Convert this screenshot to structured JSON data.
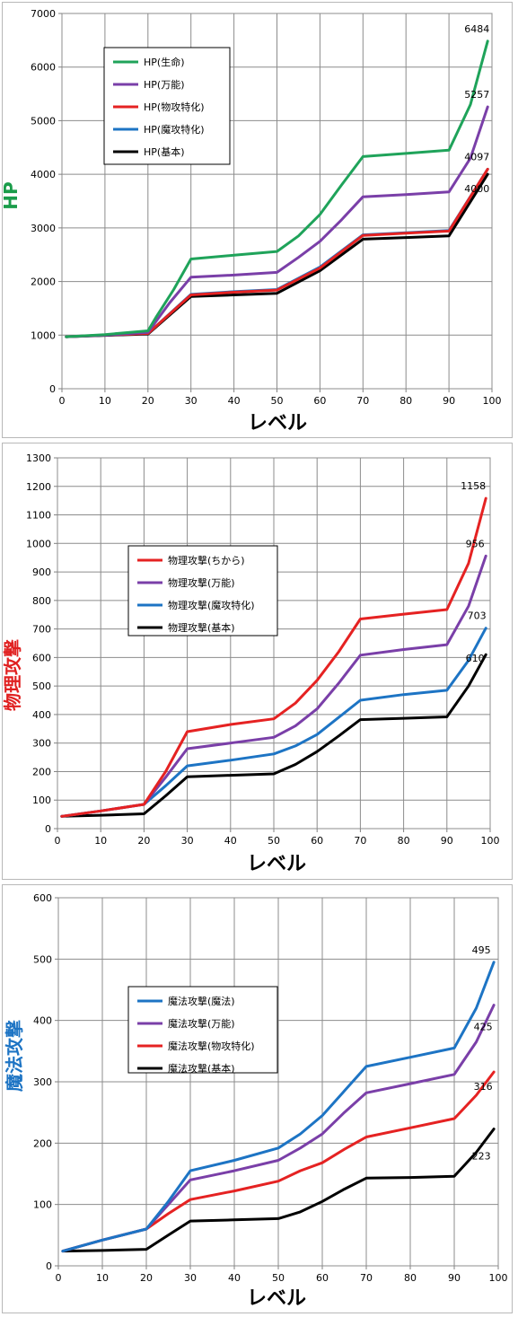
{
  "chart_data": [
    {
      "type": "line",
      "title": "",
      "xlabel": "レベル",
      "ylabel": "HP",
      "ylabel_color": "#1a9c4a",
      "xlim": [
        0,
        100
      ],
      "ylim": [
        0,
        7000
      ],
      "xticks": [
        0,
        10,
        20,
        30,
        40,
        50,
        60,
        70,
        80,
        90,
        100
      ],
      "yticks": [
        0,
        1000,
        2000,
        3000,
        4000,
        5000,
        6000,
        7000
      ],
      "grid": true,
      "legend_position": "upper-left",
      "series": [
        {
          "name": "HP(生命)",
          "color": "#1fa35a",
          "end_label": "6484",
          "points": [
            [
              1,
              970
            ],
            [
              10,
              1010
            ],
            [
              20,
              1080
            ],
            [
              22,
              1350
            ],
            [
              26,
              1850
            ],
            [
              30,
              2420
            ],
            [
              40,
              2490
            ],
            [
              50,
              2560
            ],
            [
              55,
              2850
            ],
            [
              60,
              3250
            ],
            [
              65,
              3800
            ],
            [
              70,
              4330
            ],
            [
              80,
              4390
            ],
            [
              90,
              4450
            ],
            [
              95,
              5300
            ],
            [
              99,
              6484
            ]
          ]
        },
        {
          "name": "HP(万能)",
          "color": "#7a3fa8",
          "end_label": "5257",
          "points": [
            [
              1,
              970
            ],
            [
              10,
              1000
            ],
            [
              20,
              1050
            ],
            [
              25,
              1600
            ],
            [
              30,
              2080
            ],
            [
              40,
              2120
            ],
            [
              50,
              2170
            ],
            [
              55,
              2450
            ],
            [
              60,
              2750
            ],
            [
              65,
              3150
            ],
            [
              70,
              3580
            ],
            [
              80,
              3620
            ],
            [
              90,
              3670
            ],
            [
              95,
              4300
            ],
            [
              99,
              5257
            ]
          ]
        },
        {
          "name": "HP(物攻特化)",
          "color": "#e52222",
          "end_label": "",
          "points": [
            [
              1,
              970
            ],
            [
              10,
              1000
            ],
            [
              20,
              1030
            ],
            [
              30,
              1750
            ],
            [
              40,
              1800
            ],
            [
              50,
              1840
            ],
            [
              60,
              2250
            ],
            [
              70,
              2860
            ],
            [
              80,
              2900
            ],
            [
              90,
              2940
            ],
            [
              99,
              4097
            ]
          ]
        },
        {
          "name": "HP(魔攻特化)",
          "color": "#1d74c4",
          "end_label": "4097",
          "points": [
            [
              1,
              970
            ],
            [
              10,
              1000
            ],
            [
              20,
              1030
            ],
            [
              30,
              1760
            ],
            [
              40,
              1810
            ],
            [
              50,
              1850
            ],
            [
              60,
              2270
            ],
            [
              70,
              2870
            ],
            [
              80,
              2910
            ],
            [
              90,
              2950
            ],
            [
              99,
              4097
            ]
          ]
        },
        {
          "name": "HP(基本)",
          "color": "#000000",
          "end_label": "4000",
          "points": [
            [
              1,
              970
            ],
            [
              10,
              995
            ],
            [
              20,
              1020
            ],
            [
              30,
              1720
            ],
            [
              40,
              1750
            ],
            [
              50,
              1780
            ],
            [
              60,
              2200
            ],
            [
              70,
              2790
            ],
            [
              80,
              2820
            ],
            [
              90,
              2850
            ],
            [
              99,
              4000
            ]
          ]
        }
      ]
    },
    {
      "type": "line",
      "title": "",
      "xlabel": "レベル",
      "ylabel": "物理攻撃",
      "ylabel_color": "#e02020",
      "xlim": [
        0,
        100
      ],
      "ylim": [
        0,
        1300
      ],
      "xticks": [
        0,
        10,
        20,
        30,
        40,
        50,
        60,
        70,
        80,
        90,
        100
      ],
      "yticks": [
        0,
        100,
        200,
        300,
        400,
        500,
        600,
        700,
        800,
        900,
        1000,
        1100,
        1200,
        1300
      ],
      "grid": true,
      "legend_position": "center-left",
      "series": [
        {
          "name": "物理攻撃(ちから)",
          "color": "#e52222",
          "end_label": "1158",
          "points": [
            [
              1,
              43
            ],
            [
              10,
              62
            ],
            [
              20,
              85
            ],
            [
              25,
              200
            ],
            [
              30,
              340
            ],
            [
              40,
              365
            ],
            [
              50,
              385
            ],
            [
              55,
              440
            ],
            [
              60,
              520
            ],
            [
              65,
              620
            ],
            [
              70,
              735
            ],
            [
              80,
              752
            ],
            [
              90,
              768
            ],
            [
              95,
              930
            ],
            [
              99,
              1158
            ]
          ]
        },
        {
          "name": "物理攻撃(万能)",
          "color": "#7a3fa8",
          "end_label": "956",
          "points": [
            [
              1,
              43
            ],
            [
              10,
              62
            ],
            [
              20,
              85
            ],
            [
              25,
              180
            ],
            [
              30,
              280
            ],
            [
              40,
              300
            ],
            [
              50,
              320
            ],
            [
              55,
              360
            ],
            [
              60,
              420
            ],
            [
              65,
              510
            ],
            [
              70,
              608
            ],
            [
              80,
              628
            ],
            [
              90,
              645
            ],
            [
              95,
              780
            ],
            [
              99,
              956
            ]
          ]
        },
        {
          "name": "物理攻撃(魔攻特化)",
          "color": "#1d74c4",
          "end_label": "703",
          "points": [
            [
              1,
              43
            ],
            [
              10,
              62
            ],
            [
              20,
              85
            ],
            [
              25,
              150
            ],
            [
              30,
              220
            ],
            [
              40,
              240
            ],
            [
              50,
              262
            ],
            [
              55,
              290
            ],
            [
              60,
              330
            ],
            [
              65,
              390
            ],
            [
              70,
              450
            ],
            [
              80,
              470
            ],
            [
              90,
              485
            ],
            [
              95,
              590
            ],
            [
              99,
              703
            ]
          ]
        },
        {
          "name": "物理攻撃(基本)",
          "color": "#000000",
          "end_label": "610",
          "points": [
            [
              1,
              43
            ],
            [
              10,
              47
            ],
            [
              20,
              52
            ],
            [
              25,
              115
            ],
            [
              30,
              182
            ],
            [
              40,
              187
            ],
            [
              50,
              192
            ],
            [
              55,
              225
            ],
            [
              60,
              270
            ],
            [
              65,
              325
            ],
            [
              70,
              382
            ],
            [
              80,
              387
            ],
            [
              90,
              392
            ],
            [
              95,
              500
            ],
            [
              99,
              610
            ]
          ]
        }
      ]
    },
    {
      "type": "line",
      "title": "",
      "xlabel": "レベル",
      "ylabel": "魔法攻撃",
      "ylabel_color": "#1d74c4",
      "xlim": [
        0,
        100
      ],
      "ylim": [
        0,
        600
      ],
      "xticks": [
        0,
        10,
        20,
        30,
        40,
        50,
        60,
        70,
        80,
        90,
        100
      ],
      "yticks": [
        0,
        100,
        200,
        300,
        400,
        500,
        600
      ],
      "grid": true,
      "legend_position": "center-left",
      "series": [
        {
          "name": "魔法攻撃(魔法)",
          "color": "#1d74c4",
          "end_label": "495",
          "points": [
            [
              1,
              24
            ],
            [
              10,
              42
            ],
            [
              20,
              60
            ],
            [
              25,
              105
            ],
            [
              30,
              155
            ],
            [
              40,
              172
            ],
            [
              50,
              192
            ],
            [
              55,
              215
            ],
            [
              60,
              245
            ],
            [
              65,
              285
            ],
            [
              70,
              325
            ],
            [
              80,
              340
            ],
            [
              90,
              355
            ],
            [
              95,
              420
            ],
            [
              99,
              495
            ]
          ]
        },
        {
          "name": "魔法攻撃(万能)",
          "color": "#7a3fa8",
          "end_label": "425",
          "points": [
            [
              1,
              24
            ],
            [
              10,
              42
            ],
            [
              20,
              60
            ],
            [
              25,
              100
            ],
            [
              30,
              140
            ],
            [
              40,
              155
            ],
            [
              50,
              172
            ],
            [
              55,
              192
            ],
            [
              60,
              215
            ],
            [
              65,
              250
            ],
            [
              70,
              282
            ],
            [
              80,
              297
            ],
            [
              90,
              312
            ],
            [
              95,
              365
            ],
            [
              99,
              425
            ]
          ]
        },
        {
          "name": "魔法攻撃(物攻特化)",
          "color": "#e52222",
          "end_label": "316",
          "points": [
            [
              1,
              24
            ],
            [
              10,
              42
            ],
            [
              20,
              60
            ],
            [
              25,
              85
            ],
            [
              30,
              108
            ],
            [
              40,
              122
            ],
            [
              50,
              138
            ],
            [
              55,
              155
            ],
            [
              60,
              168
            ],
            [
              65,
              190
            ],
            [
              70,
              210
            ],
            [
              80,
              225
            ],
            [
              90,
              240
            ],
            [
              95,
              278
            ],
            [
              99,
              316
            ]
          ]
        },
        {
          "name": "魔法攻撃(基本)",
          "color": "#000000",
          "end_label": "223",
          "points": [
            [
              1,
              24
            ],
            [
              10,
              25
            ],
            [
              20,
              27
            ],
            [
              25,
              50
            ],
            [
              30,
              73
            ],
            [
              40,
              75
            ],
            [
              50,
              77
            ],
            [
              55,
              88
            ],
            [
              60,
              105
            ],
            [
              65,
              125
            ],
            [
              70,
              143
            ],
            [
              80,
              144
            ],
            [
              90,
              146
            ],
            [
              95,
              185
            ],
            [
              99,
              223
            ]
          ]
        }
      ]
    }
  ]
}
